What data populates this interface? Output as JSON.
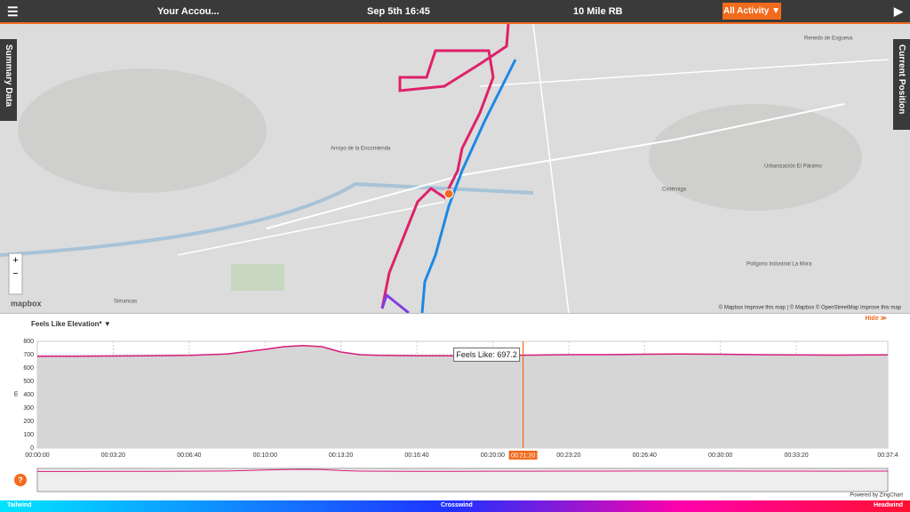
{
  "topbar": {
    "account": "Your Accou...",
    "date": "Sep 5th 16:45",
    "activity_name": "10 Mile RB",
    "filter": "All Activity ▼"
  },
  "side_tabs": {
    "left": "Summary Data",
    "right": "Current Position"
  },
  "map": {
    "labels": [
      "Arroyo de la Encomienda",
      "Simancas",
      "Cistérniga",
      "Renedo de Esgueva",
      "Urbanización El Páramo",
      "Polígono Industrial La Mora"
    ],
    "zoom_in": "+",
    "zoom_out": "−",
    "logo": "mapbox",
    "attribution": "© Mapbox Improve this map | © Mapbox © OpenStreetMap Improve this map"
  },
  "chart_panel": {
    "hide": "Hide ≫",
    "powered_by": "Powered by ZingChart",
    "help": "?"
  },
  "chart_data": {
    "type": "line",
    "title": "Feels Like Elevation* ▼",
    "y_label": "m",
    "x": [
      0,
      100,
      200,
      300,
      400,
      500,
      600,
      650,
      700,
      750,
      800,
      850,
      900,
      1000,
      1100,
      1200,
      1300,
      1400,
      1500,
      1600,
      1700,
      1800,
      1900,
      2000,
      2100,
      2200,
      2241
    ],
    "series": [
      {
        "name": "Feels Like",
        "color": "#d81b7a",
        "values": [
          688,
          688,
          690,
          692,
          695,
          705,
          740,
          760,
          768,
          760,
          720,
          700,
          695,
          692,
          692,
          694,
          697,
          700,
          700,
          703,
          705,
          703,
          700,
          698,
          697,
          698,
          698
        ]
      }
    ],
    "xlim": [
      0,
      2241
    ],
    "xticks": [
      {
        "value": 0,
        "label": "00:00:00"
      },
      {
        "value": 200,
        "label": "00:03:20"
      },
      {
        "value": 400,
        "label": "00:06:40"
      },
      {
        "value": 600,
        "label": "00:10:00"
      },
      {
        "value": 800,
        "label": "00:13:20"
      },
      {
        "value": 1000,
        "label": "00:16:40"
      },
      {
        "value": 1200,
        "label": "00:20:00"
      },
      {
        "value": 1400,
        "label": "00:23:20"
      },
      {
        "value": 1600,
        "label": "00:26:40"
      },
      {
        "value": 1800,
        "label": "00:30:00"
      },
      {
        "value": 2000,
        "label": "00:33:20"
      },
      {
        "value": 2241,
        "label": "00:37:4"
      }
    ],
    "ylim": [
      0,
      800
    ],
    "yticks": [
      0,
      100,
      200,
      300,
      400,
      500,
      600,
      700,
      800
    ],
    "grid": true,
    "cursor": {
      "value": 1280,
      "label": "00:21:20"
    },
    "tooltip": {
      "text": "Feels Like: 697.2",
      "value": 697.2
    }
  },
  "wind_legend": [
    "Tailwind",
    "Crosswind",
    "Headwind"
  ]
}
